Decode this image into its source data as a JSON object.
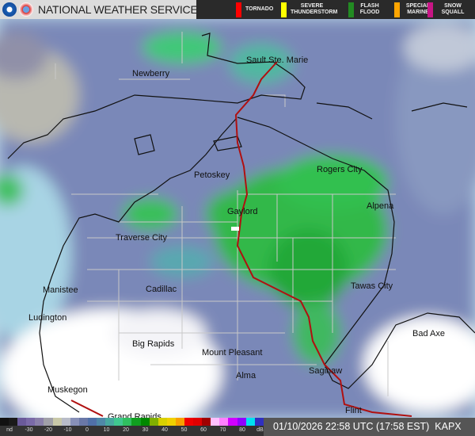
{
  "header": {
    "title": "NATIONAL WEATHER SERVICE",
    "warnings": [
      {
        "label": "TORNADO",
        "color": "#ff0000"
      },
      {
        "label": "SEVERE THUNDERSTORM",
        "color": "#ffff00"
      },
      {
        "label": "FLASH FLOOD",
        "color": "#228b22"
      },
      {
        "label": "SPECIAL MARINE",
        "color": "#ffa500"
      },
      {
        "label": "SNOW SQUALL",
        "color": "#c71585"
      }
    ]
  },
  "map": {
    "cities": [
      "Sault Ste. Marie",
      "Newberry",
      "Petoskey",
      "Rogers City",
      "Gaylord",
      "Alpena",
      "Traverse City",
      "Tawas City",
      "Manistee",
      "Cadillac",
      "Ludington",
      "Bad Axe",
      "Big Rapids",
      "Mount Pleasant",
      "Alma",
      "Saginaw",
      "Muskegon",
      "Flint",
      "Grand Rapids"
    ],
    "highway_color": "#b01010"
  },
  "scale": {
    "labels": [
      "nd",
      "-30",
      "-20",
      "-10",
      "0",
      "10",
      "20",
      "30",
      "40",
      "50",
      "60",
      "70",
      "80",
      "dBZ"
    ],
    "colors": [
      "#111111",
      "#1a1a1a",
      "#6a5a9a",
      "#7a6aa8",
      "#8a80aa",
      "#a0a0a8",
      "#c8c8a8",
      "#b8bcc8",
      "#8890b8",
      "#6a78a8",
      "#5070a8",
      "#4f88a8",
      "#48a8a0",
      "#40c890",
      "#30c060",
      "#10a020",
      "#008800",
      "#80b000",
      "#d8d000",
      "#f0d000",
      "#f8a000",
      "#f00000",
      "#e00000",
      "#a00000",
      "#ffc0ff",
      "#ff80ff",
      "#d000ff",
      "#9000ff",
      "#00e0f0",
      "#3030c0"
    ]
  },
  "footer": {
    "timestamp": "01/10/2026 22:58 UTC (17:58 EST)",
    "station": "KAPX"
  }
}
